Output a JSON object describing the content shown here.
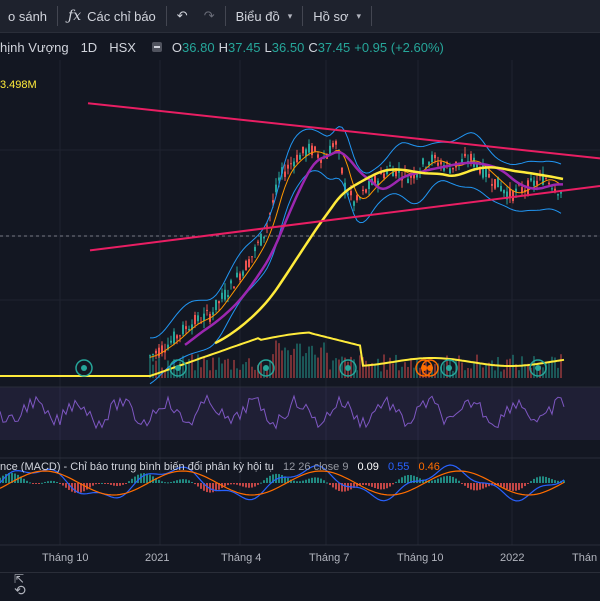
{
  "toolbar": {
    "compare": "o sánh",
    "indicators_icon": "fx-icon",
    "indicators": "Các chỉ báo",
    "chart_type": "Biểu đồ",
    "profile": "Hồ sơ"
  },
  "legend": {
    "symbol": "hịnh Vượng",
    "interval": "1D",
    "exchange": "HSX",
    "o_key": "O",
    "o": "36.80",
    "h_key": "H",
    "h": "37.45",
    "l_key": "L",
    "l": "36.50",
    "c_key": "C",
    "c": "37.45",
    "change": "+0.95 (+2.60%)"
  },
  "volume_label": "3.498M",
  "macd": {
    "name": "nce (MACD) - Chỉ báo trung bình biến đổi phân kỳ hội tụ",
    "params": "12 26 close 9",
    "v1": "0.09",
    "v2": "0.55",
    "v3": "0.46"
  },
  "x_axis": [
    "Tháng 10",
    "2021",
    "Tháng 4",
    "Tháng 7",
    "Tháng 10",
    "2022",
    "Thán"
  ],
  "colors": {
    "bg": "#131722",
    "trendline": "#e91e63",
    "ma_yellow": "#ffeb3b",
    "ma_purple": "#9c27b0",
    "band": "#2196f3",
    "rsi": "#7e57c2",
    "macd": "#2962ff",
    "signal": "#ff6d00"
  },
  "chart_data": {
    "type": "line",
    "price_series": [
      {
        "x": 0,
        "y": 18
      },
      {
        "x": 40,
        "y": 18.5
      },
      {
        "x": 80,
        "y": 19
      },
      {
        "x": 120,
        "y": 19
      },
      {
        "x": 150,
        "y": 19.5
      },
      {
        "x": 170,
        "y": 21
      },
      {
        "x": 190,
        "y": 23
      },
      {
        "x": 210,
        "y": 24
      },
      {
        "x": 230,
        "y": 27
      },
      {
        "x": 250,
        "y": 30
      },
      {
        "x": 265,
        "y": 33
      },
      {
        "x": 280,
        "y": 39
      },
      {
        "x": 295,
        "y": 41
      },
      {
        "x": 310,
        "y": 42
      },
      {
        "x": 325,
        "y": 41
      },
      {
        "x": 335,
        "y": 43
      },
      {
        "x": 345,
        "y": 38
      },
      {
        "x": 355,
        "y": 36
      },
      {
        "x": 370,
        "y": 38
      },
      {
        "x": 390,
        "y": 40
      },
      {
        "x": 410,
        "y": 39
      },
      {
        "x": 430,
        "y": 41
      },
      {
        "x": 450,
        "y": 40
      },
      {
        "x": 470,
        "y": 41
      },
      {
        "x": 490,
        "y": 39
      },
      {
        "x": 510,
        "y": 37
      },
      {
        "x": 530,
        "y": 38
      },
      {
        "x": 545,
        "y": 39
      },
      {
        "x": 560,
        "y": 37.45
      }
    ],
    "trendline_upper": [
      {
        "x": 88,
        "y": 47
      },
      {
        "x": 600,
        "y": 41
      }
    ],
    "trendline_lower": [
      {
        "x": 90,
        "y": 31
      },
      {
        "x": 600,
        "y": 38
      }
    ]
  },
  "bottom": {
    "icon1": "fit-icon",
    "icon2": "replay-icon"
  }
}
